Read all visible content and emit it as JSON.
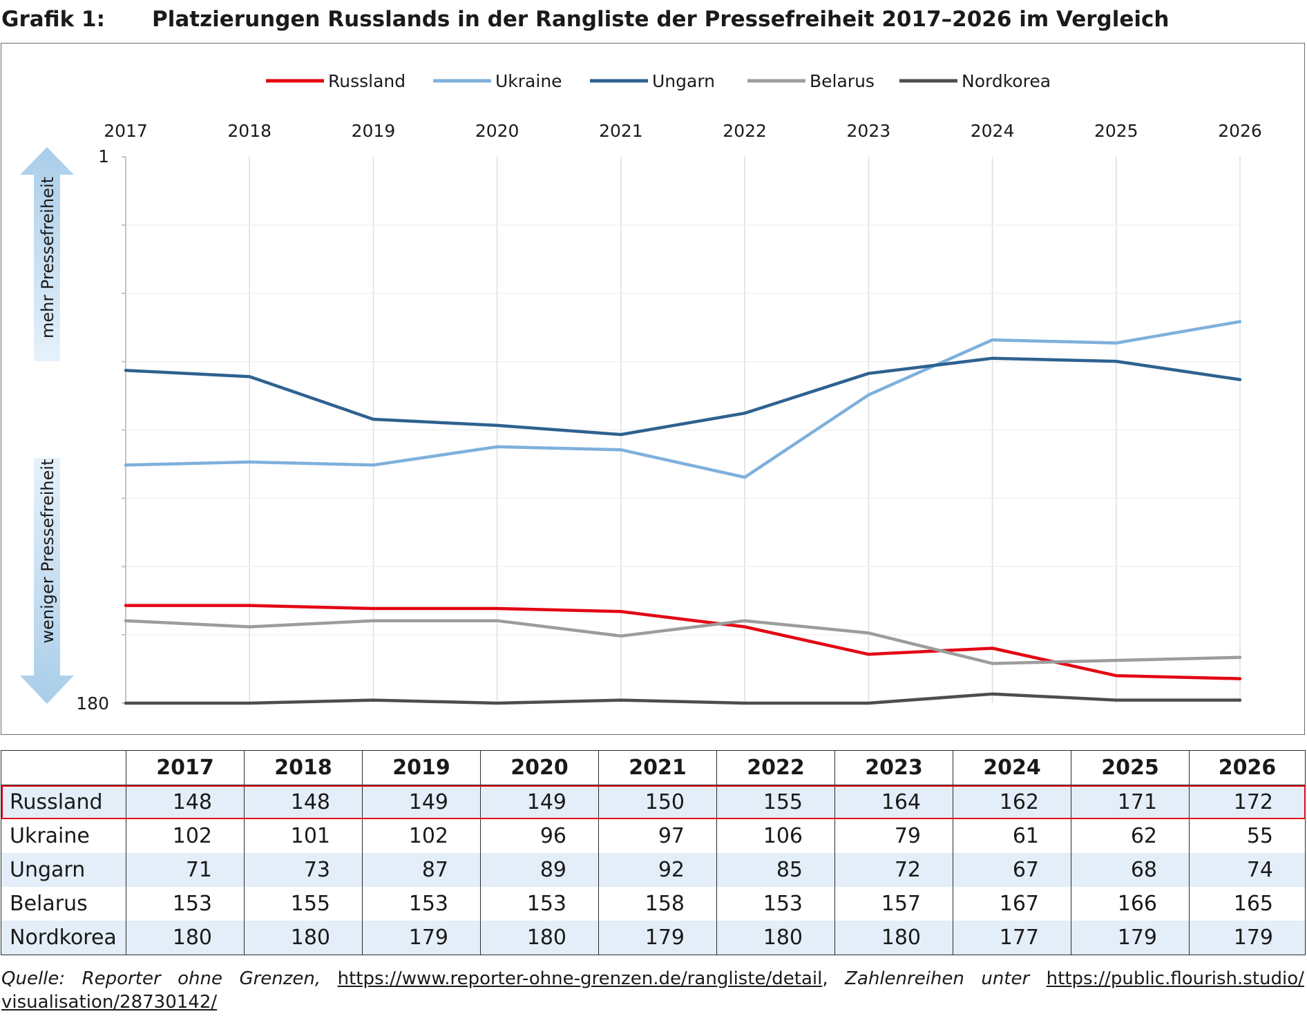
{
  "title_prefix": "Grafik 1:",
  "title": "Platzierungen Russlands in der Rangliste der Pressefreiheit 2017–2026 im Vergleich",
  "chart_data": {
    "type": "line",
    "x": [
      "2017",
      "2018",
      "2019",
      "2020",
      "2021",
      "2022",
      "2023",
      "2024",
      "2025",
      "2026"
    ],
    "y_reversed": true,
    "ylim": [
      1,
      180
    ],
    "y_tick_labels": [
      "1",
      "180"
    ],
    "arrow_up_label": "mehr Pressefreiheit",
    "arrow_down_label": "weniger Pressefreiheit",
    "legend_position": "top",
    "grid": true,
    "series": [
      {
        "name": "Russland",
        "color": "#e30613",
        "values": [
          148,
          148,
          149,
          149,
          150,
          155,
          164,
          162,
          171,
          172
        ]
      },
      {
        "name": "Ukraine",
        "color": "#7eb0dc",
        "values": [
          102,
          101,
          102,
          96,
          97,
          106,
          79,
          61,
          62,
          55
        ]
      },
      {
        "name": "Ungarn",
        "color": "#2e6190",
        "values": [
          71,
          73,
          87,
          89,
          92,
          85,
          72,
          67,
          68,
          74
        ]
      },
      {
        "name": "Belarus",
        "color": "#9c9c9c",
        "values": [
          153,
          155,
          153,
          153,
          158,
          153,
          157,
          167,
          166,
          165
        ]
      },
      {
        "name": "Nordkorea",
        "color": "#4d4d4d",
        "values": [
          180,
          180,
          179,
          180,
          179,
          180,
          180,
          177,
          179,
          179
        ]
      }
    ]
  },
  "table": {
    "corner": "",
    "years": [
      "2017",
      "2018",
      "2019",
      "2020",
      "2021",
      "2022",
      "2023",
      "2024",
      "2025",
      "2026"
    ],
    "rows": [
      {
        "country": "Russland",
        "values": [
          "148",
          "148",
          "149",
          "149",
          "150",
          "155",
          "164",
          "162",
          "171",
          "172"
        ]
      },
      {
        "country": "Ukraine",
        "values": [
          "102",
          "101",
          "102",
          "96",
          "97",
          "106",
          "79",
          "61",
          "62",
          "55"
        ]
      },
      {
        "country": "Ungarn",
        "values": [
          "71",
          "73",
          "87",
          "89",
          "92",
          "85",
          "72",
          "67",
          "68",
          "74"
        ]
      },
      {
        "country": "Belarus",
        "values": [
          "153",
          "155",
          "153",
          "153",
          "158",
          "153",
          "157",
          "167",
          "166",
          "165"
        ]
      },
      {
        "country": "Nordkorea",
        "values": [
          "180",
          "180",
          "179",
          "180",
          "179",
          "180",
          "180",
          "177",
          "179",
          "179"
        ]
      }
    ]
  },
  "source": {
    "label": "Quelle:",
    "org": "Reporter ohne Grenzen,",
    "url1": "https://www.reporter-ohne-grenzen.de/rangliste/detail",
    "mid_comma": ",",
    "zahlen": "Zahlenreihen",
    "unter": "unter",
    "url2_part1": "https://public.flourish.studio/",
    "url2_part2": "visualisation/28730142/"
  }
}
